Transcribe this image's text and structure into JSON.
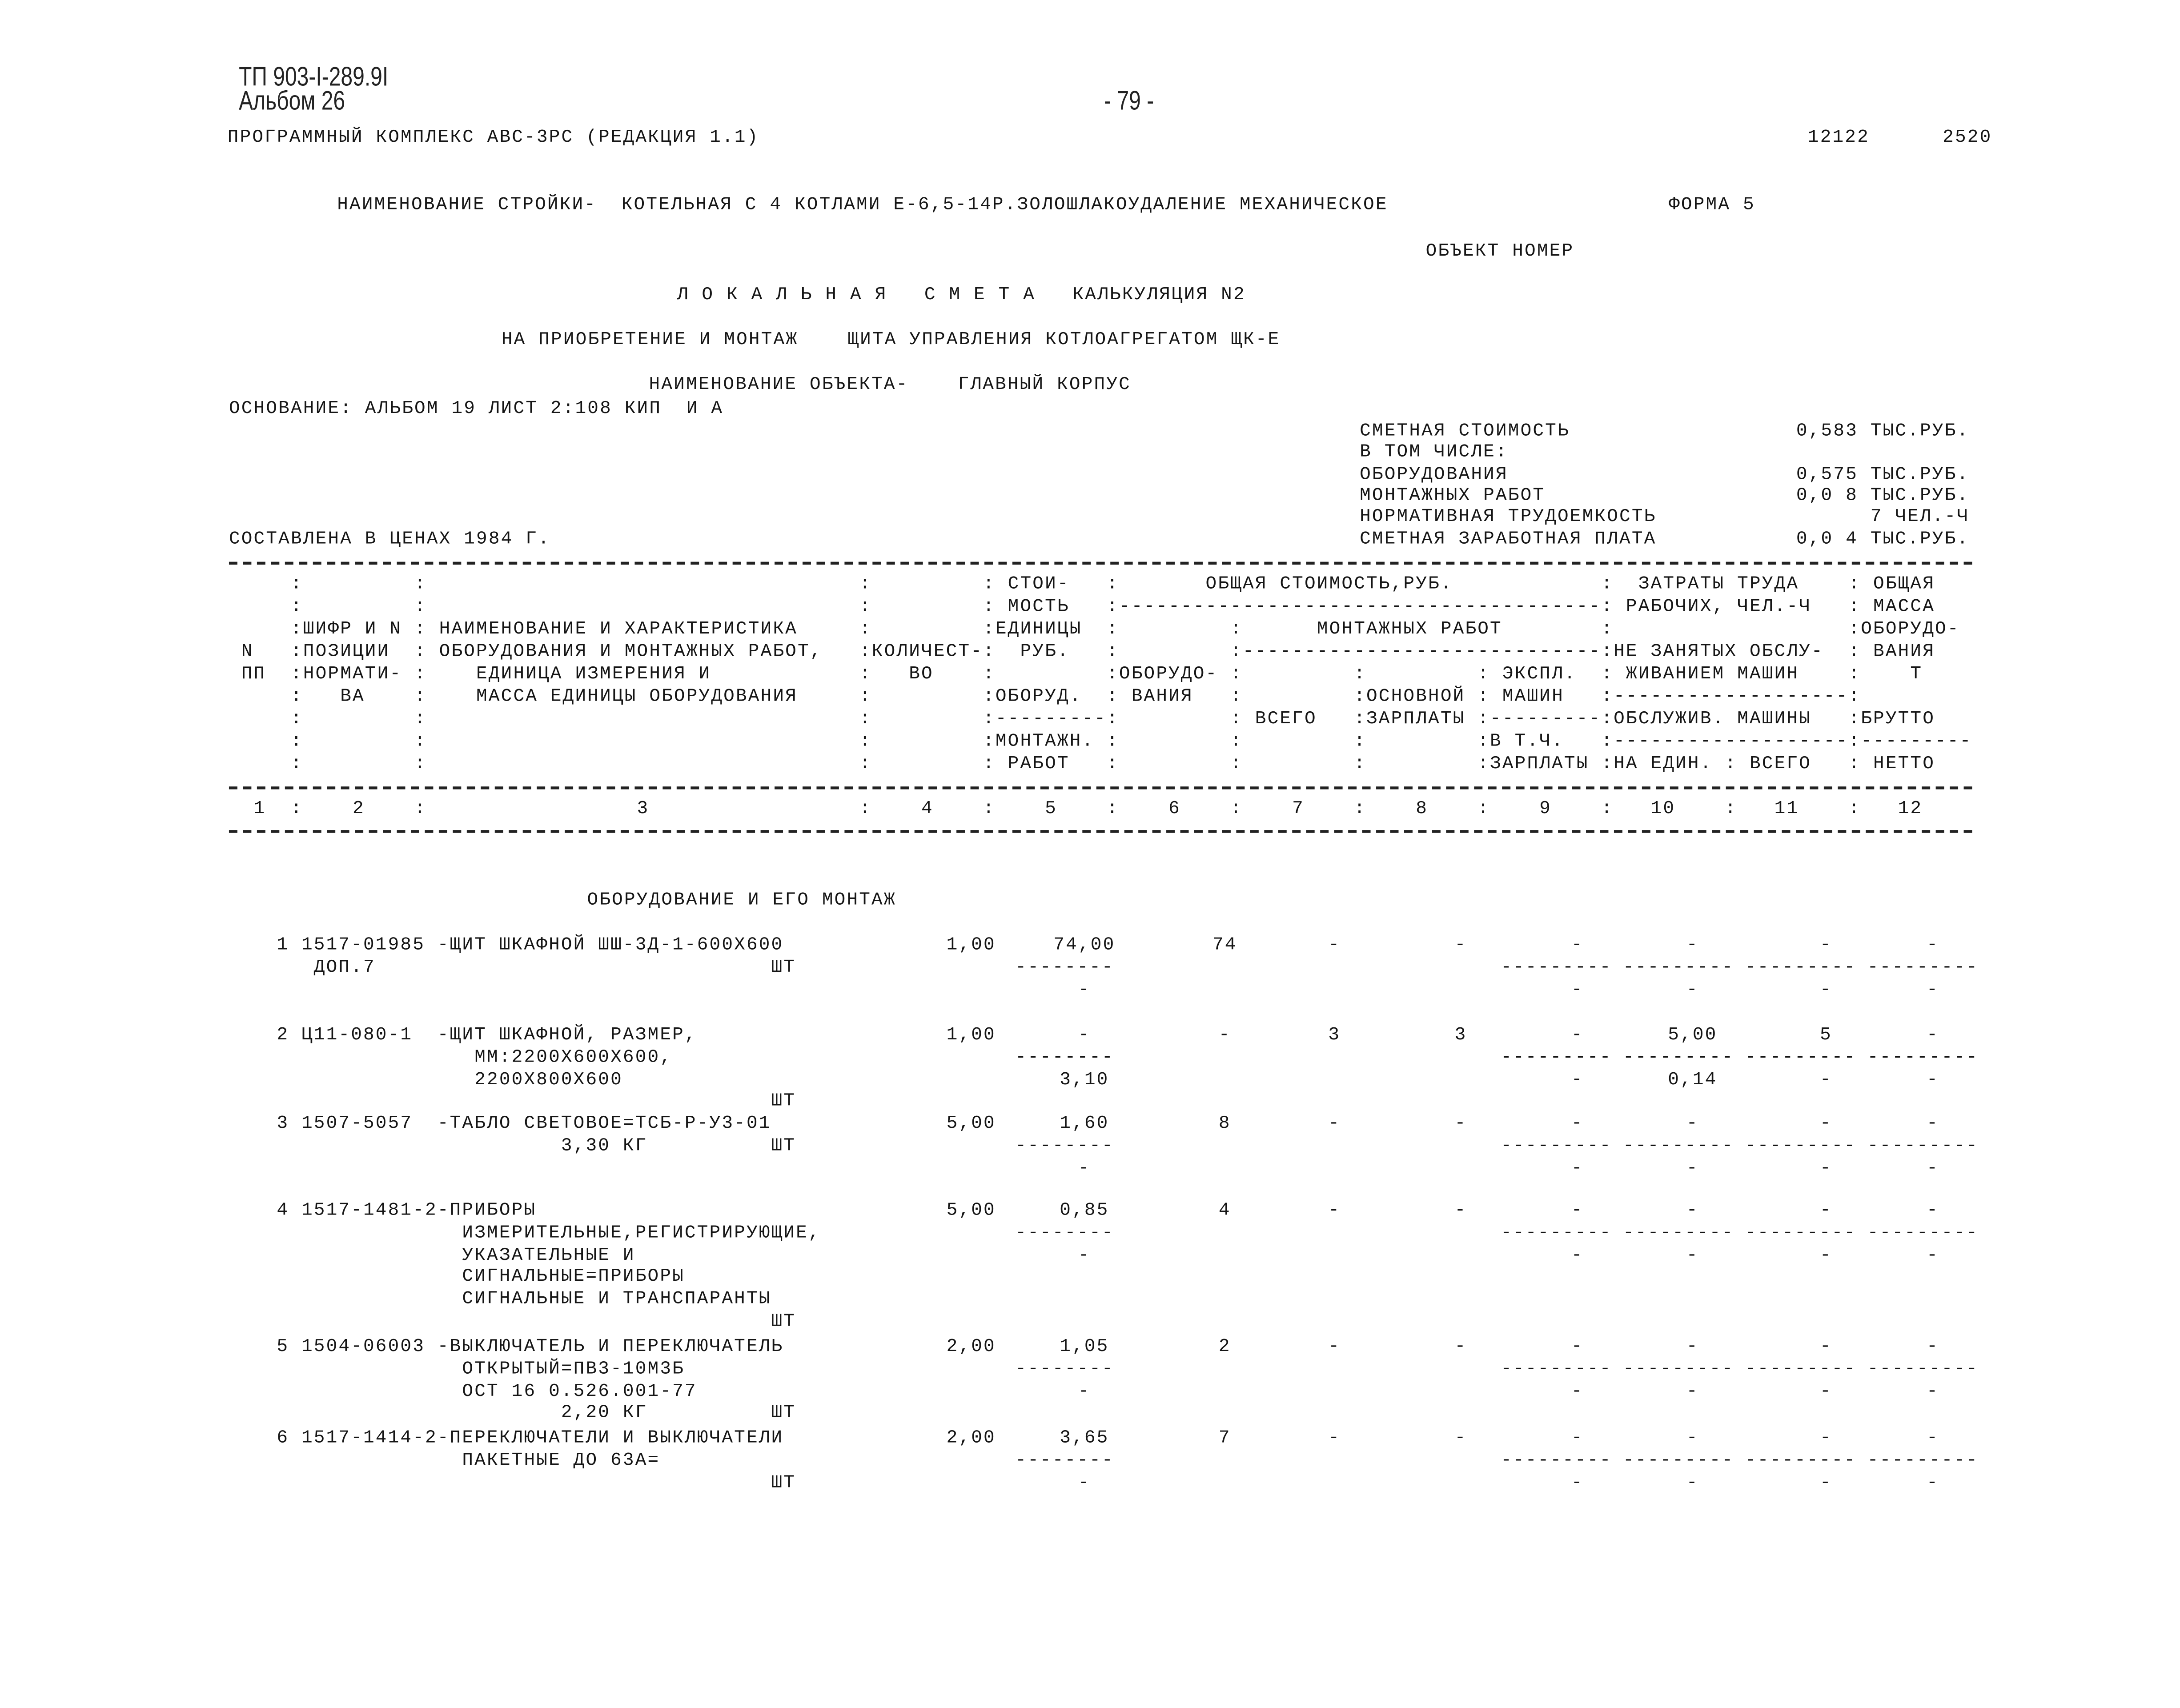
{
  "doc": {
    "code": "ТП 903-I-289.9I",
    "album": "Альбом 26",
    "page_number": "- 79 -",
    "program": "ПРОГРАММНЫЙ КОМПЛЕКС АВС-3РС (РЕДАКЦИЯ 1.1)",
    "num1": "12122",
    "num2": "2520",
    "construction": "НАИМЕНОВАНИЕ СТРОЙКИ-  КОТЕЛЬНАЯ С 4 КОТЛАМИ Е-6,5-14Р.ЗОЛОШЛАКОУДАЛЕНИЕ МЕХАНИЧЕСКОЕ",
    "form": "ФОРМА 5",
    "object_number": "ОБЪЕКТ НОМЕР",
    "title": "Л О К А Л Ь Н А Я   С М Е Т А   КАЛЬКУЛЯЦИЯ N2",
    "subtitle": "НА ПРИОБРЕТЕНИЕ И МОНТАЖ    ЩИТА УПРАВЛЕНИЯ КОТЛОАГРЕГАТОМ ЩК-Е",
    "object_name": "НАИМЕНОВАНИЕ ОБЪЕКТА-    ГЛАВНЫЙ КОРПУС",
    "basis": "ОСНОВАНИЕ: АЛЬБОМ 19 ЛИСТ 2:108 КИП  И А",
    "prices": "СОСТАВЛЕНА В ЦЕНАХ 1984 Г."
  },
  "summary": [
    {
      "label": "СМЕТНАЯ СТОИМОСТЬ",
      "value": "0,583 ТЫС.РУБ."
    },
    {
      "label": "В ТОМ ЧИСЛЕ:",
      "value": ""
    },
    {
      "label": "ОБОРУДОВАНИЯ",
      "value": "0,575 ТЫС.РУБ."
    },
    {
      "label": "МОНТАЖНЫХ РАБОТ",
      "value": "0,0 8 ТЫС.РУБ."
    },
    {
      "label": "НОРМАТИВНАЯ ТРУДОЕМКОСТЬ",
      "value": "7 ЧЕЛ.-Ч"
    },
    {
      "label": "СМЕТНАЯ ЗАРАБОТНАЯ ПЛАТА",
      "value": "0,0 4 ТЫС.РУБ."
    }
  ],
  "table_header": [
    [
      "",
      "",
      "",
      "",
      " СТОИ-",
      "       ОБЩАЯ СТОИМОСТЬ,РУБ.",
      null,
      null,
      null,
      "  ЗАТРАТЫ ТРУДА",
      null,
      " ОБЩАЯ"
    ],
    [
      "",
      "",
      "",
      "",
      " МОСТЬ",
      "---------------------------------------",
      null,
      null,
      null,
      " РАБОЧИХ, ЧЕЛ.-Ч",
      null,
      " МАССА"
    ],
    [
      "",
      "ШИФР И N",
      " НАИМЕНОВАНИЕ И ХАРАКТЕРИСТИКА",
      "",
      "ЕДИНИЦЫ",
      "",
      "      МОНТАЖНЫХ РАБОТ",
      null,
      null,
      "",
      null,
      "ОБОРУДО-"
    ],
    [
      " N",
      "ПОЗИЦИИ",
      " ОБОРУДОВАНИЯ И МОНТАЖНЫХ РАБОТ,",
      "КОЛИЧЕСТ-",
      "  РУБ.",
      "",
      "-----------------------------",
      null,
      null,
      "НЕ ЗАНЯТЫХ ОБСЛУ-",
      null,
      " ВАНИЯ"
    ],
    [
      " ПП",
      "НОРМАТИ-",
      "    ЕДИНИЦА ИЗМЕРЕНИЯ И",
      "   ВО",
      "",
      "ОБОРУДО-",
      "",
      "",
      " ЭКСПЛ.",
      " ЖИВАНИЕМ МАШИН",
      null,
      "    Т"
    ],
    [
      "",
      "   ВА",
      "    МАССА ЕДИНИЦЫ ОБОРУДОВАНИЯ",
      "",
      "ОБОРУД.",
      " ВАНИЯ",
      "",
      "ОСНОВНОЙ",
      " МАШИН",
      "-------------------",
      null,
      ""
    ],
    [
      "",
      "",
      "",
      "",
      "---------",
      "",
      " ВСЕГО",
      "ЗАРПЛАТЫ",
      "---------",
      "ОБСЛУЖИВ. МАШИНЫ",
      null,
      "БРУТТО"
    ],
    [
      "",
      "",
      "",
      "",
      "МОНТАЖН.",
      "",
      "",
      "",
      "В Т.Ч.",
      "-------------------",
      null,
      "---------"
    ],
    [
      "",
      "",
      "",
      "",
      " РАБОТ",
      "",
      "",
      "",
      "ЗАРПЛАТЫ",
      "НА ЕДИН.",
      " ВСЕГО",
      " НЕТТО"
    ]
  ],
  "column_numbers": [
    "1",
    "2",
    "3",
    "4",
    "5",
    "6",
    "7",
    "8",
    "9",
    "10",
    "11",
    "12"
  ],
  "section_title": "ОБОРУДОВАНИЕ И ЕГО МОНТАЖ",
  "dash_rule": "--------",
  "items": [
    {
      "lines": [
        "1 1517-01985 -ЩИТ ШКАФНОЙ ШШ-3Д-1-600Х600",
        "   ДОП.7                                ШТ"
      ],
      "main": [
        "1,00",
        "74,00",
        "74",
        "-",
        "-",
        "-",
        "-",
        "-",
        "-"
      ],
      "sub": [
        "-",
        "-",
        "-",
        "-",
        "-"
      ]
    },
    {
      "lines": [
        "2 Ц11-080-1  -ЩИТ ШКАФНОЙ, РАЗМЕР,",
        "                ММ:2200Х600Х600,",
        "                2200Х800Х600",
        "                                        ШТ"
      ],
      "main": [
        "1,00",
        "-",
        "-",
        "3",
        "3",
        "-",
        "5,00",
        "5",
        "-"
      ],
      "sub": [
        "3,10",
        "-",
        "0,14",
        "-",
        "-"
      ]
    },
    {
      "lines": [
        "3 1507-5057  -ТАБЛО СВЕТОВОЕ=ТСБ-Р-У3-01",
        "                       3,30 КГ          ШТ"
      ],
      "main": [
        "5,00",
        "1,60",
        "8",
        "-",
        "-",
        "-",
        "-",
        "-",
        "-"
      ],
      "sub": [
        "-",
        "-",
        "-",
        "-",
        "-"
      ]
    },
    {
      "lines": [
        "4 1517-1481-2-ПРИБОРЫ",
        "               ИЗМЕРИТЕЛЬНЫЕ,РЕГИСТРИРУЮЩИЕ,",
        "               УКАЗАТЕЛЬНЫЕ И",
        "               СИГНАЛЬНЫЕ=ПРИБОРЫ",
        "               СИГНАЛЬНЫЕ И ТРАНСПАРАНТЫ",
        "                                        ШТ"
      ],
      "main": [
        "5,00",
        "0,85",
        "4",
        "-",
        "-",
        "-",
        "-",
        "-",
        "-"
      ],
      "sub": [
        "-",
        "-",
        "-",
        "-",
        "-"
      ]
    },
    {
      "lines": [
        "5 1504-06003 -ВЫКЛЮЧАТЕЛЬ И ПЕРЕКЛЮЧАТЕЛЬ",
        "               ОТКРЫТЫЙ=ПВ3-10М3Б",
        "               ОСТ 16 0.526.001-77",
        "                       2,20 КГ          ШТ"
      ],
      "main": [
        "2,00",
        "1,05",
        "2",
        "-",
        "-",
        "-",
        "-",
        "-",
        "-"
      ],
      "sub": [
        "-",
        "-",
        "-",
        "-",
        "-"
      ]
    },
    {
      "lines": [
        "6 1517-1414-2-ПЕРЕКЛЮЧАТЕЛИ И ВЫКЛЮЧАТЕЛИ",
        "               ПАКЕТНЫЕ ДО 63А=",
        "                                        ШТ"
      ],
      "main": [
        "2,00",
        "3,65",
        "7",
        "-",
        "-",
        "-",
        "-",
        "-",
        "-"
      ],
      "sub": [
        "-",
        "-",
        "-",
        "-",
        "-"
      ]
    }
  ]
}
